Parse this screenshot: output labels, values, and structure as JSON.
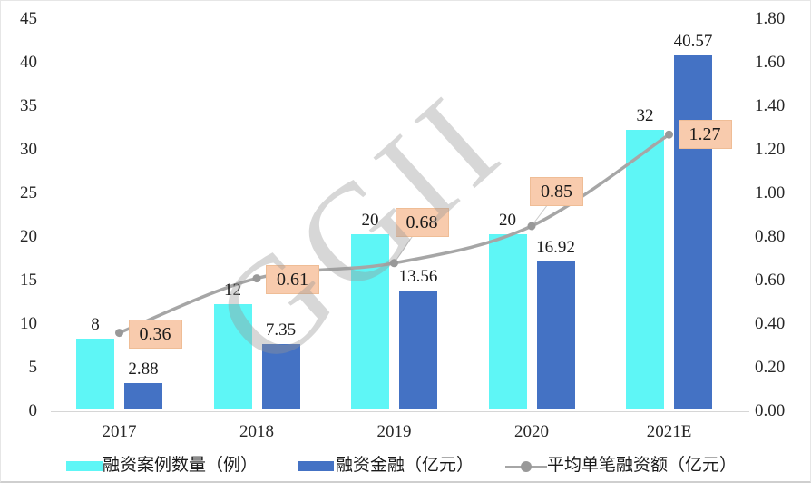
{
  "chart_data": {
    "type": "combo-bar-line",
    "title": "",
    "categories": [
      "2017",
      "2018",
      "2019",
      "2020",
      "2021E"
    ],
    "series": [
      {
        "name": "融资案例数量（例）",
        "type": "bar",
        "axis": "left",
        "color": "#5EF6F6",
        "values": [
          8,
          12,
          20,
          20,
          32
        ],
        "labels": [
          "8",
          "12",
          "20",
          "20",
          "32"
        ]
      },
      {
        "name": "融资金融（亿元）",
        "type": "bar",
        "axis": "left",
        "color": "#4472C4",
        "values": [
          2.88,
          7.35,
          13.56,
          16.92,
          40.57
        ],
        "labels": [
          "2.88",
          "7.35",
          "13.56",
          "16.92",
          "40.57"
        ]
      },
      {
        "name": "平均单笔融资额（亿元）",
        "type": "line",
        "axis": "right",
        "color": "#A6A6A6",
        "marker_color": "#999999",
        "label_bg": "#F8CBAD",
        "label_border": "#EFBD96",
        "values": [
          0.36,
          0.61,
          0.68,
          0.85,
          1.27
        ],
        "labels": [
          "0.36",
          "0.61",
          "0.68",
          "0.85",
          "1.27"
        ]
      }
    ],
    "left_axis": {
      "min": 0,
      "max": 45,
      "step": 5,
      "ticks": [
        "0",
        "5",
        "10",
        "15",
        "20",
        "25",
        "30",
        "35",
        "40",
        "45"
      ]
    },
    "right_axis": {
      "min": 0,
      "max": 1.8,
      "step": 0.2,
      "ticks": [
        "0.00",
        "0.20",
        "0.40",
        "0.60",
        "0.80",
        "1.00",
        "1.20",
        "1.40",
        "1.60",
        "1.80"
      ]
    },
    "legend": [
      "融资案例数量（例）",
      "融资金融（亿元）",
      "平均单笔融资额（亿元）"
    ],
    "legend_position": "bottom",
    "grid": false,
    "watermark": "GGII"
  }
}
